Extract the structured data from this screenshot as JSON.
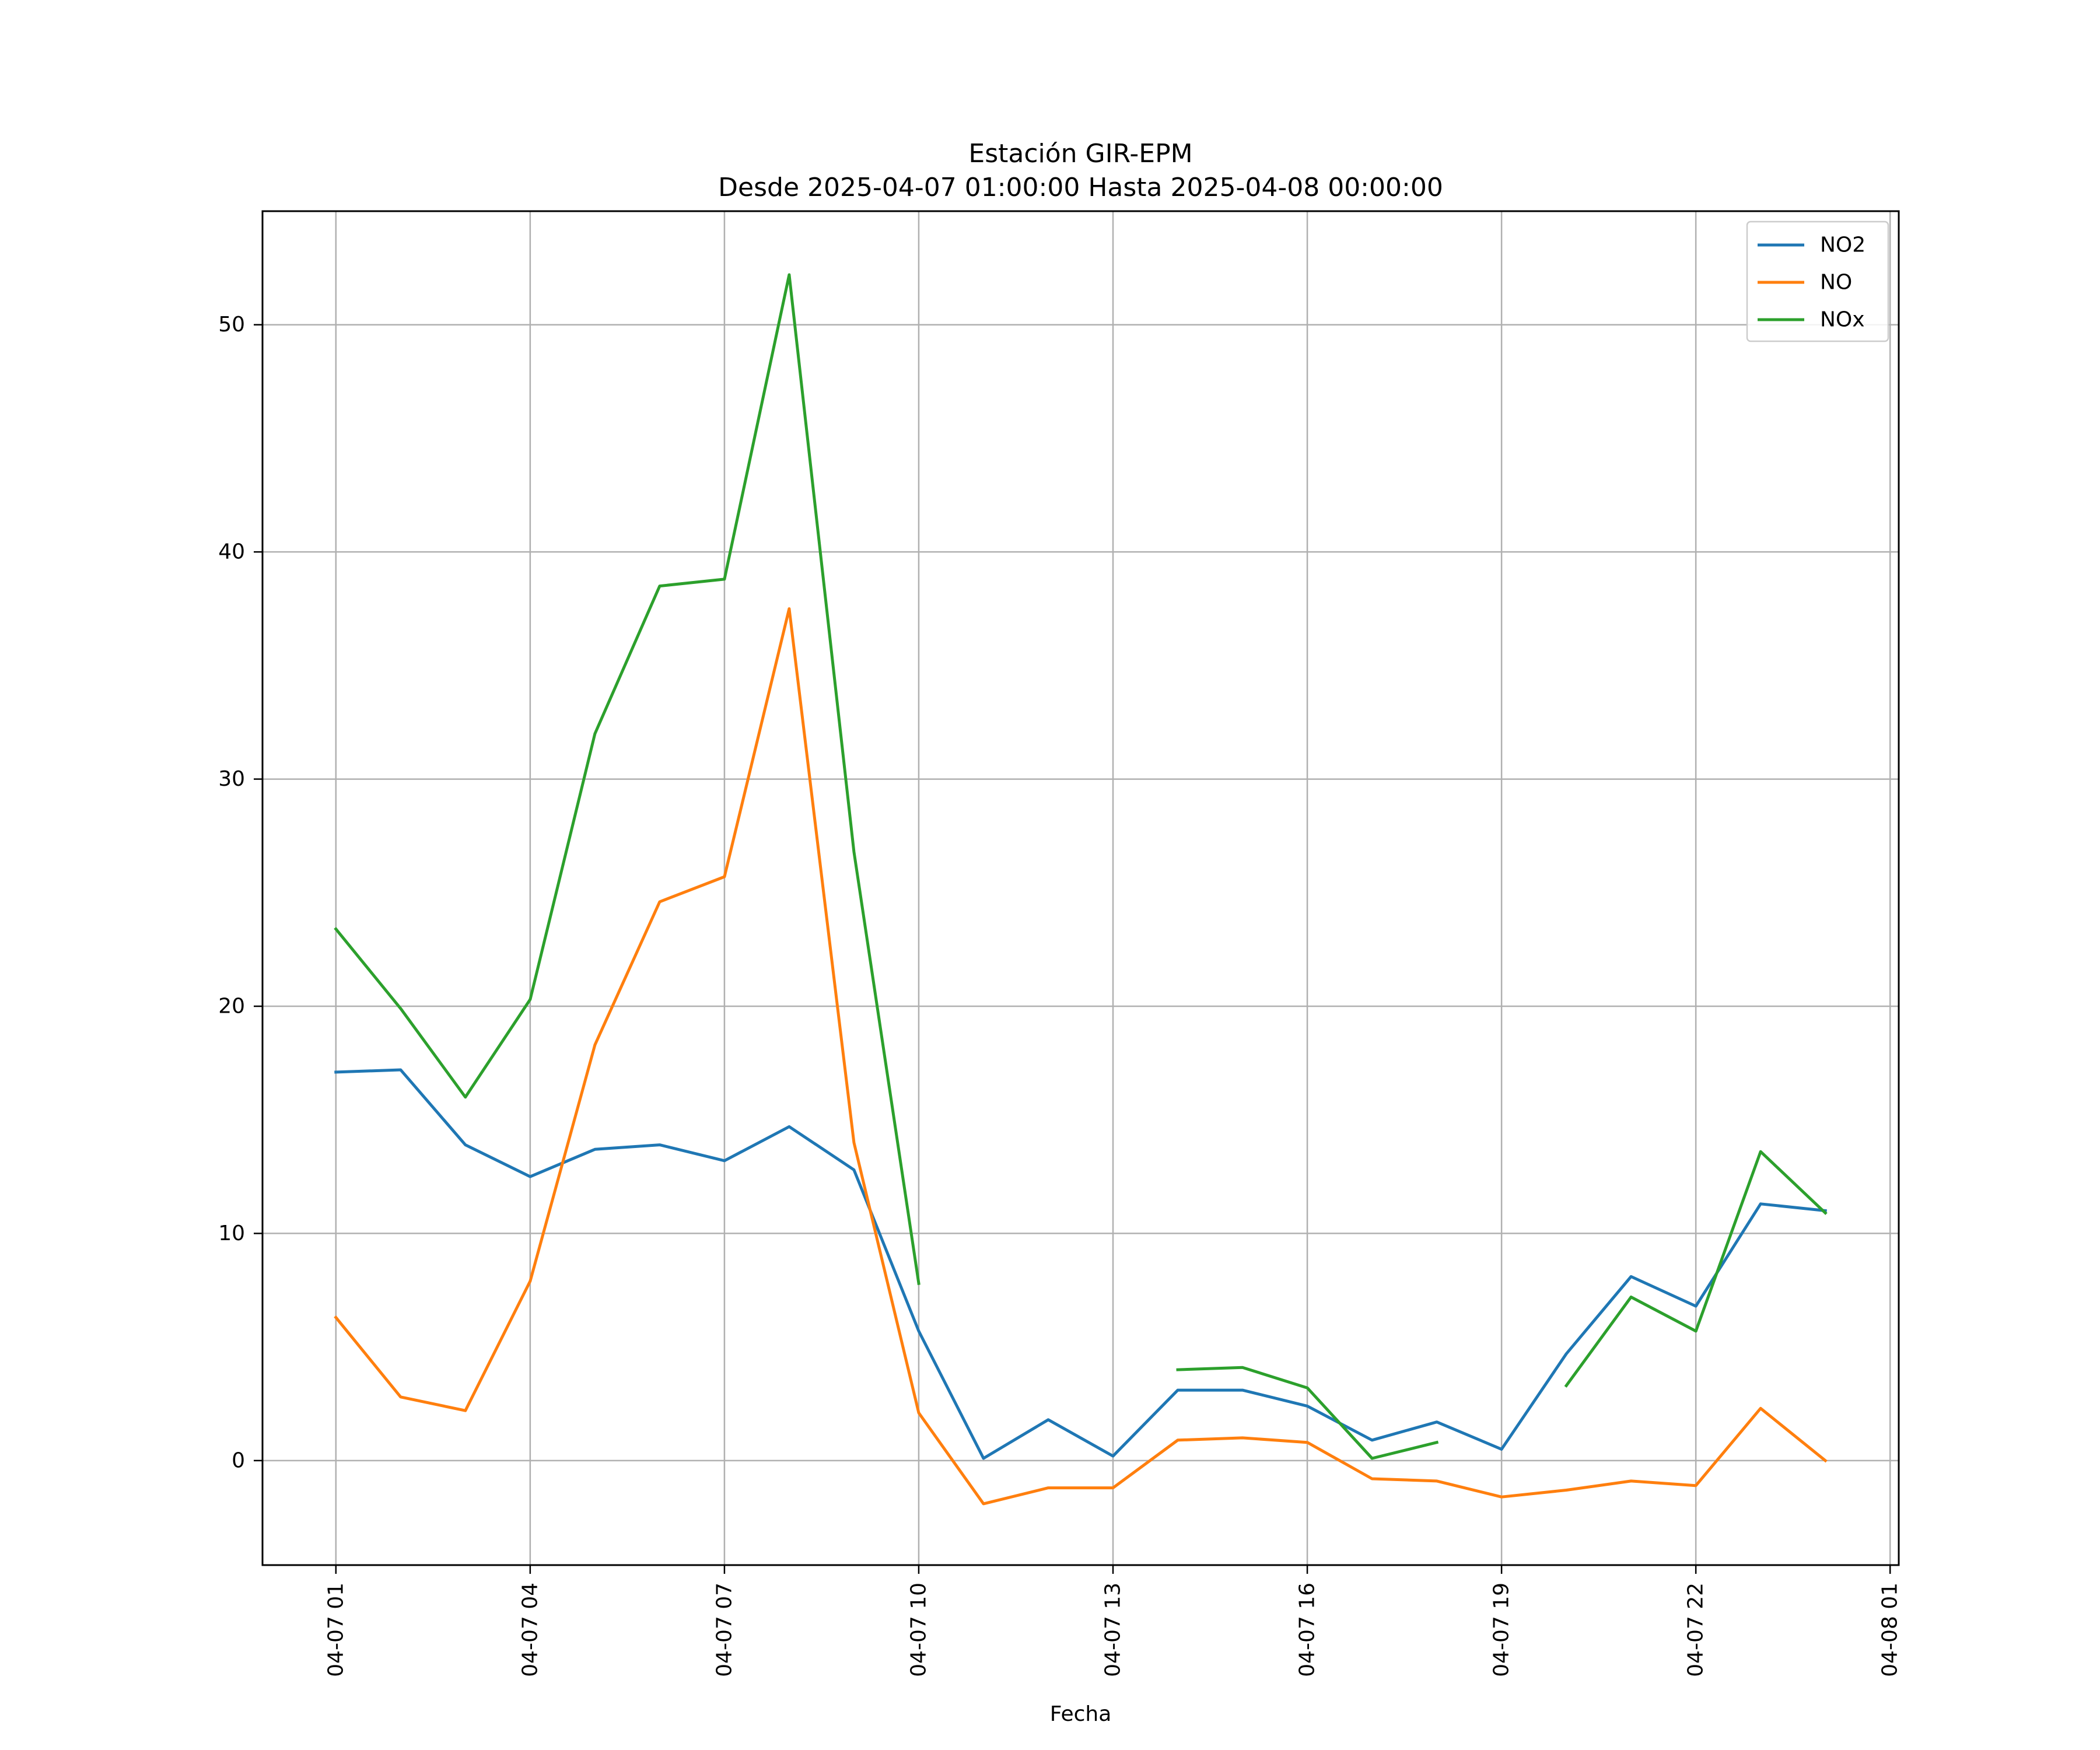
{
  "chart_data": {
    "type": "line",
    "title": "Estación GIR-EPM",
    "subtitle": "Desde 2025-04-07 01:00:00 Hasta 2025-04-08 00:00:00",
    "xlabel": "Fecha",
    "ylabel": "",
    "xlim": [
      "2025-04-06 23:52",
      "2025-04-08 01:08"
    ],
    "ylim": [
      -4.6,
      55
    ],
    "x_ticks": [
      "2025-04-07 01:00",
      "2025-04-07 04:00",
      "2025-04-07 07:00",
      "2025-04-07 10:00",
      "2025-04-07 13:00",
      "2025-04-07 16:00",
      "2025-04-07 19:00",
      "2025-04-07 22:00",
      "2025-04-08 01:00"
    ],
    "x_tick_labels": [
      "04-07 01",
      "04-07 04",
      "04-07 07",
      "04-07 10",
      "04-07 13",
      "04-07 16",
      "04-07 19",
      "04-07 22",
      "04-08 01"
    ],
    "y_ticks": [
      0,
      10,
      20,
      30,
      40,
      50
    ],
    "y_tick_labels": [
      "0",
      "10",
      "20",
      "30",
      "40",
      "50"
    ],
    "grid": true,
    "legend_position": "top-right",
    "x": [
      "2025-04-07 01:00",
      "2025-04-07 02:00",
      "2025-04-07 03:00",
      "2025-04-07 04:00",
      "2025-04-07 05:00",
      "2025-04-07 06:00",
      "2025-04-07 07:00",
      "2025-04-07 08:00",
      "2025-04-07 09:00",
      "2025-04-07 10:00",
      "2025-04-07 11:00",
      "2025-04-07 12:00",
      "2025-04-07 13:00",
      "2025-04-07 14:00",
      "2025-04-07 15:00",
      "2025-04-07 16:00",
      "2025-04-07 17:00",
      "2025-04-07 18:00",
      "2025-04-07 19:00",
      "2025-04-07 20:00",
      "2025-04-07 21:00",
      "2025-04-07 22:00",
      "2025-04-07 23:00",
      "2025-04-08 00:00"
    ],
    "series": [
      {
        "name": "NO2",
        "color": "#1f77b4",
        "values": [
          17.1,
          17.2,
          13.9,
          12.5,
          13.7,
          13.9,
          13.2,
          14.7,
          12.8,
          5.7,
          0.1,
          1.8,
          0.2,
          3.1,
          3.1,
          2.4,
          0.9,
          1.7,
          0.5,
          4.7,
          8.1,
          6.8,
          11.3,
          11.0
        ]
      },
      {
        "name": "NO",
        "color": "#ff7f0e",
        "values": [
          6.3,
          2.8,
          2.2,
          7.9,
          18.3,
          24.6,
          25.7,
          37.5,
          14.0,
          2.1,
          -1.9,
          -1.2,
          -1.2,
          0.9,
          1.0,
          0.8,
          -0.8,
          -0.9,
          -1.6,
          -1.3,
          -0.9,
          -1.1,
          2.3,
          0.0
        ]
      },
      {
        "name": "NOx",
        "color": "#2ca02c",
        "values": [
          23.4,
          19.9,
          16.0,
          20.3,
          32.0,
          38.5,
          38.8,
          52.2,
          26.8,
          7.8,
          null,
          null,
          null,
          4.0,
          4.1,
          3.2,
          0.1,
          0.8,
          null,
          3.3,
          7.2,
          5.7,
          13.6,
          10.9
        ]
      }
    ]
  }
}
